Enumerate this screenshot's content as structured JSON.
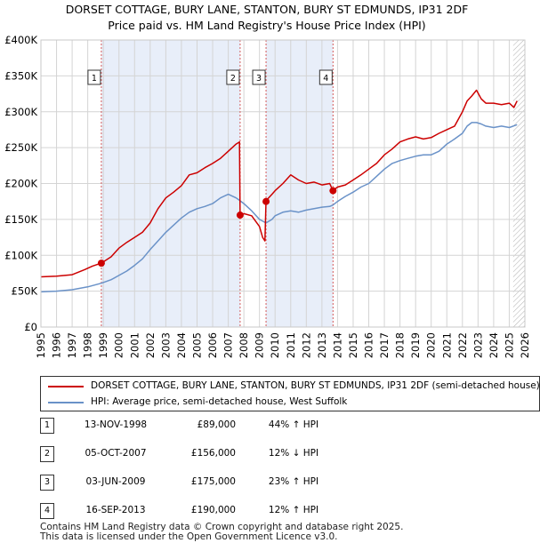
{
  "title_line1": "DORSET COTTAGE, BURY LANE, STANTON, BURY ST EDMUNDS, IP31 2DF",
  "title_line2": "Price paid vs. HM Land Registry's House Price Index (HPI)",
  "colors": {
    "property": "#cc0000",
    "hpi": "#6a92c8",
    "shade": "#e8eef9",
    "grid": "#d4d4d4",
    "vline": "#d45a5a"
  },
  "chart_data": {
    "type": "line",
    "xlim": [
      1995,
      2026
    ],
    "ylim": [
      0,
      400000
    ],
    "yticks": [
      0,
      50000,
      100000,
      150000,
      200000,
      250000,
      300000,
      350000,
      400000
    ],
    "ytick_labels": [
      "£0",
      "£50K",
      "£100K",
      "£150K",
      "£200K",
      "£250K",
      "£300K",
      "£350K",
      "£400K"
    ],
    "xticks": [
      1995,
      1996,
      1997,
      1998,
      1999,
      2000,
      2001,
      2002,
      2003,
      2004,
      2005,
      2006,
      2007,
      2008,
      2009,
      2010,
      2011,
      2012,
      2013,
      2014,
      2015,
      2016,
      2017,
      2018,
      2019,
      2020,
      2021,
      2022,
      2023,
      2024,
      2025,
      2026
    ],
    "xtick_labels": [
      "1995",
      "1996",
      "1997",
      "1998",
      "1999",
      "2000",
      "2001",
      "2002",
      "2003",
      "2004",
      "2005",
      "2006",
      "2007",
      "2008",
      "2009",
      "2010",
      "2011",
      "2012",
      "2013",
      "2014",
      "2015",
      "2016",
      "2017",
      "2018",
      "2019",
      "2020",
      "2021",
      "2022",
      "2023",
      "2024",
      "2025",
      "2026"
    ],
    "shaded_ranges": [
      [
        1998.87,
        2007.76
      ],
      [
        2009.42,
        2013.71
      ]
    ],
    "future_hatch_from": 2025.25,
    "series": [
      {
        "name": "DORSET COTTAGE, BURY LANE, STANTON, BURY ST EDMUNDS, IP31 2DF (semi-detached house)",
        "color": "#cc0000",
        "x": [
          1995.0,
          1996.0,
          1997.0,
          1997.8,
          1998.3,
          1998.87,
          1999.5,
          2000.0,
          2000.5,
          2001.0,
          2001.5,
          2002.0,
          2002.5,
          2003.0,
          2003.5,
          2004.0,
          2004.5,
          2005.0,
          2005.5,
          2006.0,
          2006.5,
          2007.0,
          2007.5,
          2007.72,
          2007.76,
          2008.0,
          2008.5,
          2009.0,
          2009.2,
          2009.35,
          2009.42,
          2009.5,
          2009.8,
          2010.0,
          2010.5,
          2011.0,
          2011.5,
          2012.0,
          2012.5,
          2013.0,
          2013.5,
          2013.71,
          2014.0,
          2014.5,
          2015.0,
          2015.5,
          2016.0,
          2016.5,
          2017.0,
          2017.5,
          2018.0,
          2018.5,
          2019.0,
          2019.5,
          2020.0,
          2020.5,
          2021.0,
          2021.5,
          2022.0,
          2022.3,
          2022.6,
          2022.9,
          2023.2,
          2023.5,
          2024.0,
          2024.5,
          2025.0,
          2025.3,
          2025.5
        ],
        "y": [
          70000,
          71000,
          73000,
          80000,
          85000,
          89000,
          98000,
          110000,
          118000,
          125000,
          132000,
          145000,
          165000,
          180000,
          188000,
          197000,
          212000,
          215000,
          222000,
          228000,
          235000,
          245000,
          255000,
          258000,
          156000,
          158000,
          155000,
          140000,
          125000,
          120000,
          175000,
          178000,
          185000,
          190000,
          200000,
          212000,
          205000,
          200000,
          202000,
          198000,
          200000,
          190000,
          195000,
          198000,
          205000,
          212000,
          220000,
          228000,
          240000,
          248000,
          258000,
          262000,
          265000,
          262000,
          264000,
          270000,
          275000,
          280000,
          300000,
          315000,
          322000,
          330000,
          318000,
          312000,
          312000,
          310000,
          312000,
          306000,
          315000
        ]
      },
      {
        "name": "HPI: Average price, semi-detached house, West Suffolk",
        "color": "#6a92c8",
        "x": [
          1995.0,
          1996.0,
          1997.0,
          1998.0,
          1998.87,
          1999.5,
          2000.0,
          2000.5,
          2001.0,
          2001.5,
          2002.0,
          2002.5,
          2003.0,
          2003.5,
          2004.0,
          2004.5,
          2005.0,
          2005.5,
          2006.0,
          2006.5,
          2007.0,
          2007.5,
          2007.76,
          2008.0,
          2008.5,
          2009.0,
          2009.42,
          2009.8,
          2010.0,
          2010.5,
          2011.0,
          2011.5,
          2012.0,
          2012.5,
          2013.0,
          2013.5,
          2013.71,
          2014.0,
          2014.5,
          2015.0,
          2015.5,
          2016.0,
          2016.5,
          2017.0,
          2017.5,
          2018.0,
          2018.5,
          2019.0,
          2019.5,
          2020.0,
          2020.5,
          2021.0,
          2021.5,
          2022.0,
          2022.3,
          2022.6,
          2022.9,
          2023.2,
          2023.5,
          2024.0,
          2024.5,
          2025.0,
          2025.5
        ],
        "y": [
          49000,
          50000,
          52000,
          56000,
          61000,
          66000,
          72000,
          78000,
          86000,
          95000,
          108000,
          120000,
          132000,
          142000,
          152000,
          160000,
          165000,
          168000,
          172000,
          180000,
          185000,
          180000,
          176000,
          172000,
          162000,
          150000,
          145000,
          150000,
          155000,
          160000,
          162000,
          160000,
          163000,
          165000,
          167000,
          168000,
          170000,
          175000,
          182000,
          188000,
          195000,
          200000,
          210000,
          220000,
          228000,
          232000,
          235000,
          238000,
          240000,
          240000,
          245000,
          255000,
          262000,
          270000,
          280000,
          285000,
          285000,
          283000,
          280000,
          278000,
          280000,
          278000,
          282000
        ]
      }
    ],
    "sales": [
      {
        "num": "1",
        "x": 1998.87,
        "y": 89000
      },
      {
        "num": "2",
        "x": 2007.76,
        "y": 156000
      },
      {
        "num": "3",
        "x": 2009.42,
        "y": 175000
      },
      {
        "num": "4",
        "x": 2013.71,
        "y": 190000
      }
    ]
  },
  "legend": {
    "property_label": "DORSET COTTAGE, BURY LANE, STANTON, BURY ST EDMUNDS, IP31 2DF (semi-detached house)",
    "hpi_label": "HPI: Average price, semi-detached house, West Suffolk"
  },
  "sales_table": [
    {
      "num": "1",
      "date": "13-NOV-1998",
      "price": "£89,000",
      "hpi": "44% ↑ HPI"
    },
    {
      "num": "2",
      "date": "05-OCT-2007",
      "price": "£156,000",
      "hpi": "12% ↓ HPI"
    },
    {
      "num": "3",
      "date": "03-JUN-2009",
      "price": "£175,000",
      "hpi": "23% ↑ HPI"
    },
    {
      "num": "4",
      "date": "16-SEP-2013",
      "price": "£190,000",
      "hpi": "12% ↑ HPI"
    }
  ],
  "footer_line1": "Contains HM Land Registry data © Crown copyright and database right 2025.",
  "footer_line2": "This data is licensed under the Open Government Licence v3.0."
}
